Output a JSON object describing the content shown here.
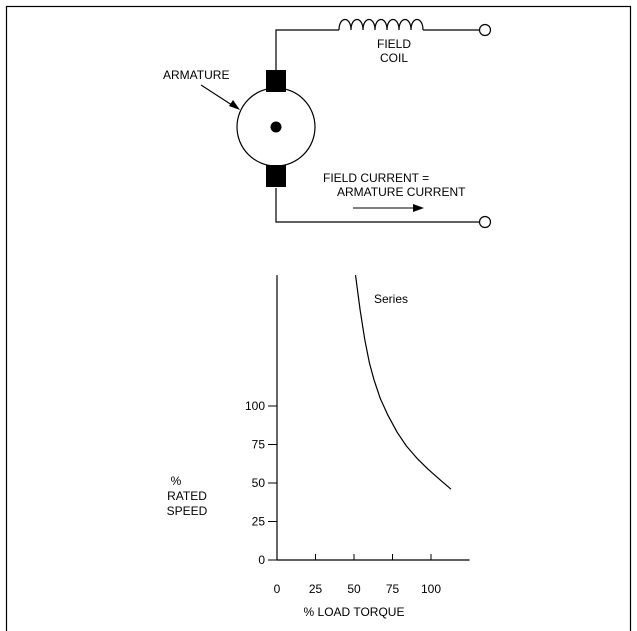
{
  "diagram": {
    "armature_label": "ARMATURE",
    "field_coil_label": [
      "FIELD",
      "COIL"
    ],
    "current_note": [
      "FIELD CURRENT =",
      "ARMATURE CURRENT"
    ]
  },
  "chart_data": {
    "type": "line",
    "title": "",
    "xlabel": "% LOAD TORQUE",
    "ylabel": [
      "%",
      "RATED",
      "SPEED"
    ],
    "x_ticks": [
      0,
      25,
      50,
      75,
      100
    ],
    "y_ticks": [
      0,
      25,
      50,
      75,
      100
    ],
    "xlim": [
      0,
      125
    ],
    "ylim": [
      0,
      185
    ],
    "series": [
      {
        "name": "Series",
        "points": [
          [
            51,
            185
          ],
          [
            54,
            162
          ],
          [
            57,
            143
          ],
          [
            60,
            128
          ],
          [
            63,
            117
          ],
          [
            67,
            105
          ],
          [
            72,
            94
          ],
          [
            78,
            83
          ],
          [
            84,
            74
          ],
          [
            91,
            66
          ],
          [
            98,
            59
          ],
          [
            106,
            52
          ],
          [
            113,
            46
          ]
        ]
      }
    ]
  }
}
